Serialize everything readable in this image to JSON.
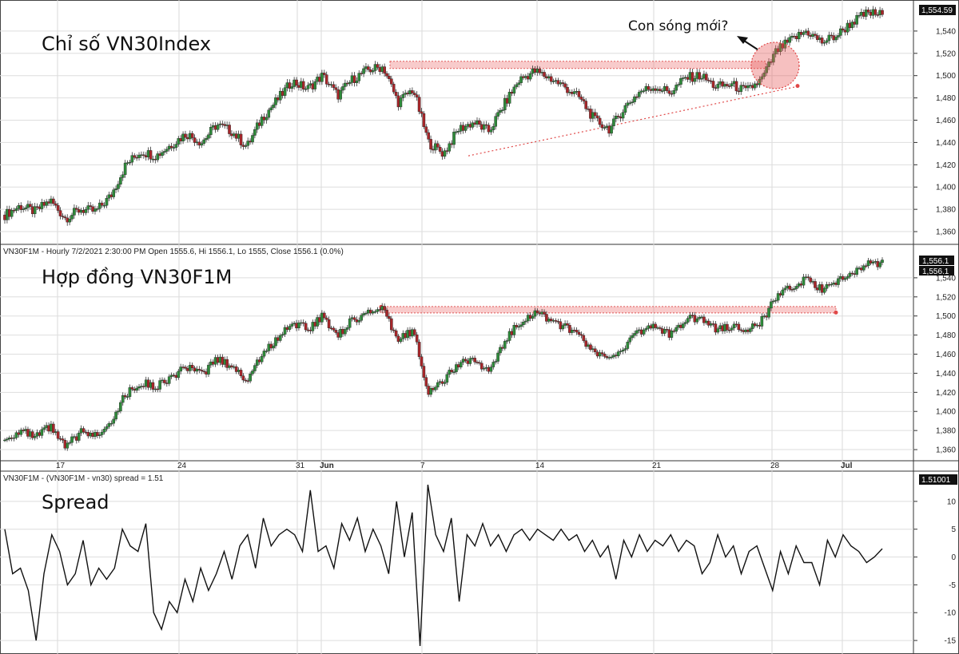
{
  "chart_data": [
    {
      "type": "candlestick",
      "title": "Chỉ số VN30Index",
      "price_label": "1,554.59",
      "annotation": "Con sóng mới?",
      "ylim": [
        1350,
        1565
      ],
      "yticks": [
        1360,
        1380,
        1400,
        1420,
        1440,
        1460,
        1480,
        1500,
        1520,
        1540
      ],
      "ytick_labels": [
        "1,360",
        "1,380",
        "1,400",
        "1,420",
        "1,440",
        "1,460",
        "1,480",
        "1,500",
        "1,520",
        "1,540"
      ],
      "close_path": [
        1375,
        1383,
        1378,
        1388,
        1372,
        1380,
        1378,
        1392,
        1420,
        1432,
        1428,
        1438,
        1448,
        1440,
        1456,
        1450,
        1436,
        1462,
        1478,
        1495,
        1488,
        1500,
        1482,
        1497,
        1505,
        1508,
        1476,
        1488,
        1440,
        1430,
        1452,
        1458,
        1450,
        1474,
        1496,
        1504,
        1498,
        1490,
        1480,
        1460,
        1452,
        1472,
        1486,
        1490,
        1485,
        1498,
        1500,
        1490,
        1492,
        1486,
        1496,
        1522,
        1532,
        1540,
        1530,
        1536,
        1548,
        1556,
        1555
      ],
      "resistance_level": 1510,
      "support_line": [
        1428,
        1490
      ]
    },
    {
      "type": "candlestick",
      "header": "VN30F1M - Hourly 7/2/2021 2:30:00 PM Open 1555.6, Hi 1556.1, Lo 1555, Close 1556.1 (0.0%)",
      "title": "Hợp đồng VN30F1M",
      "price_labels": [
        "1,556.1",
        "1,556.1"
      ],
      "ylim": [
        1350,
        1565
      ],
      "yticks": [
        1360,
        1380,
        1400,
        1420,
        1440,
        1460,
        1480,
        1500,
        1520,
        1540
      ],
      "ytick_labels": [
        "1,360",
        "1,380",
        "1,400",
        "1,420",
        "1,440",
        "1,460",
        "1,480",
        "1,500",
        "1,520",
        "1,540"
      ],
      "close_path": [
        1370,
        1380,
        1372,
        1384,
        1362,
        1378,
        1375,
        1390,
        1418,
        1430,
        1426,
        1436,
        1446,
        1438,
        1455,
        1448,
        1432,
        1460,
        1476,
        1494,
        1486,
        1500,
        1480,
        1496,
        1504,
        1506,
        1474,
        1486,
        1420,
        1432,
        1450,
        1455,
        1440,
        1472,
        1494,
        1503,
        1497,
        1488,
        1478,
        1460,
        1455,
        1470,
        1484,
        1489,
        1480,
        1496,
        1499,
        1486,
        1490,
        1484,
        1494,
        1520,
        1530,
        1538,
        1528,
        1534,
        1546,
        1555,
        1556
      ],
      "resistance_level": 1507,
      "xticks": [
        "17",
        "24",
        "31",
        "Jun",
        "7",
        "14",
        "21",
        "28",
        "Jul"
      ]
    },
    {
      "type": "line",
      "header": "VN30F1M - (VN30F1M - vn30) spread = 1.51",
      "title": "Spread",
      "price_label": "1.51001",
      "ylim": [
        -17,
        14
      ],
      "yticks": [
        -15,
        -10,
        -5,
        0,
        5,
        10
      ],
      "ytick_labels": [
        "-15",
        "-10",
        "-5",
        "0",
        "5",
        "10"
      ],
      "series": [
        {
          "values": [
            5,
            -3,
            -2,
            -6,
            -15,
            -3,
            4,
            1,
            -5,
            -3,
            3,
            -5,
            -2,
            -4,
            -2,
            5,
            2,
            1,
            6,
            -10,
            -13,
            -8,
            -10,
            -4,
            -8,
            -2,
            -6,
            -3,
            1,
            -4,
            2,
            4,
            -2,
            7,
            2,
            4,
            5,
            4,
            1,
            12,
            1,
            2,
            -2,
            6,
            3,
            7,
            1,
            5,
            2,
            -3,
            10,
            0,
            8,
            -16,
            13,
            4,
            1,
            7,
            -8,
            4,
            2,
            6,
            2,
            4,
            1,
            4,
            5,
            3,
            5,
            4,
            3,
            5,
            3,
            4,
            1,
            3,
            0,
            2,
            -4,
            3,
            0,
            4,
            1,
            3,
            2,
            4,
            1,
            3,
            2,
            -3,
            -1,
            4,
            0,
            2,
            -3,
            1,
            2,
            -2,
            -6,
            1,
            -3,
            2,
            -1,
            -1,
            -5,
            3,
            0,
            4,
            2,
            1,
            -1,
            0,
            1.5
          ]
        }
      ]
    }
  ]
}
